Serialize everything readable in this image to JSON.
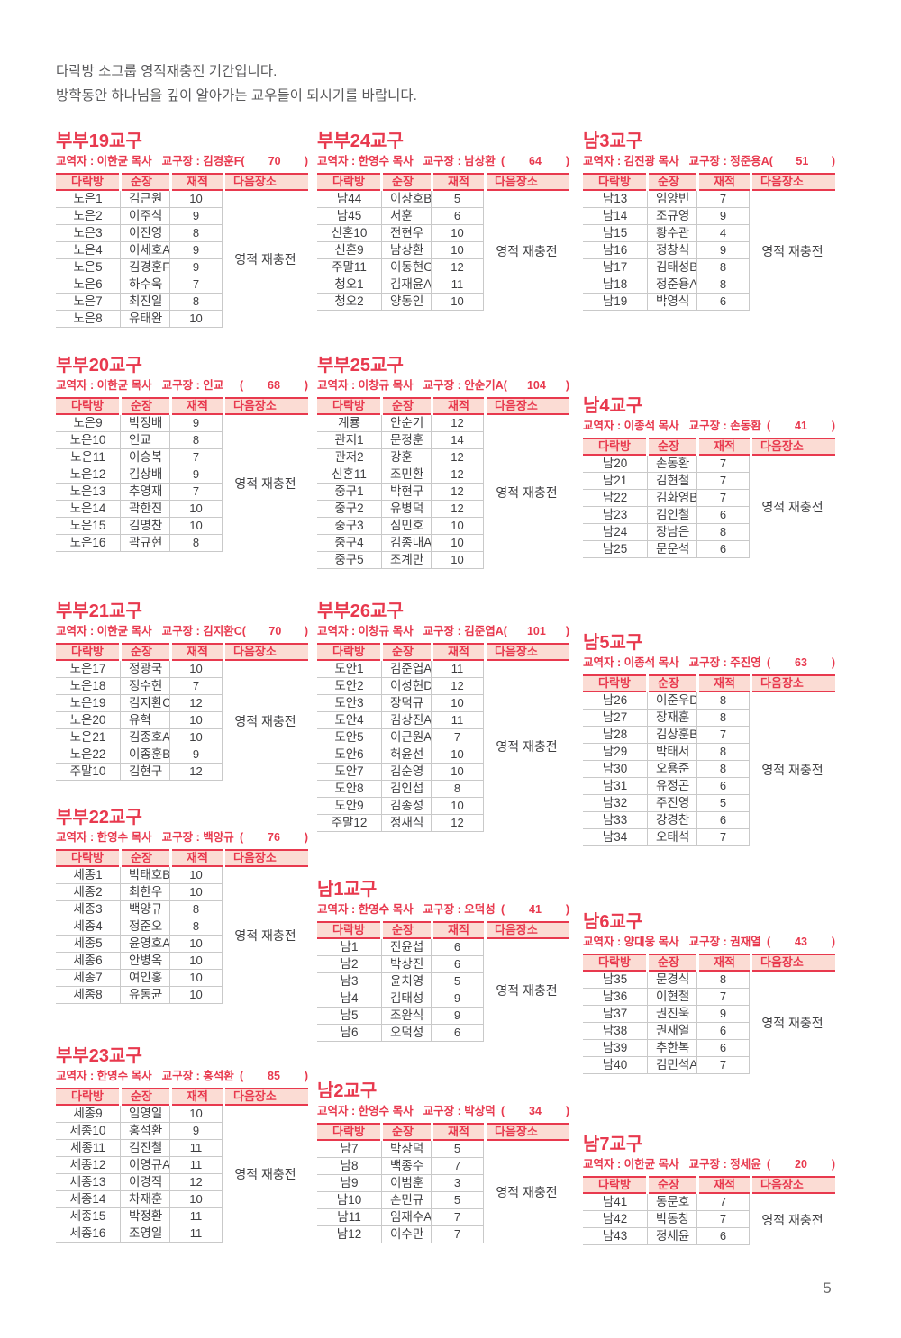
{
  "page": {
    "intro_lines": [
      "다락방 소그룹 영적재충전 기간입니다.",
      "방학동안 하나님을 깊이 알아가는 교우들이 되시기를 바랍니다."
    ],
    "page_number": "5"
  },
  "table_headers": [
    "다락방",
    "순장",
    "재적",
    "다음장소"
  ],
  "colors": {
    "accent_red": "#e8394e",
    "header_pink": "#fbdcd4",
    "text_dark": "#3e3e40",
    "line_gray": "#c9c9c9"
  },
  "columns": [
    [
      {
        "title": "부부19교구",
        "pastor": "교역자 : 이한균 목사",
        "leader": "교구장 : 김경훈F",
        "count": "70",
        "next_place": "영적 재충전",
        "rows": [
          [
            "노은1",
            "김근원",
            "10"
          ],
          [
            "노은2",
            "이주식",
            "9"
          ],
          [
            "노은3",
            "이진영",
            "8"
          ],
          [
            "노은4",
            "이세호A",
            "9"
          ],
          [
            "노은5",
            "김경훈F",
            "9"
          ],
          [
            "노은6",
            "하수욱",
            "7"
          ],
          [
            "노은7",
            "최진일",
            "8"
          ],
          [
            "노은8",
            "유태완",
            "10"
          ]
        ]
      },
      {
        "title": "부부20교구",
        "pastor": "교역자 : 이한균 목사",
        "leader": "교구장 : 인교",
        "count": "68",
        "next_place": "영적 재충전",
        "rows": [
          [
            "노은9",
            "박정배",
            "9"
          ],
          [
            "노은10",
            "인교",
            "8"
          ],
          [
            "노은11",
            "이승복",
            "7"
          ],
          [
            "노은12",
            "김상배",
            "9"
          ],
          [
            "노은13",
            "추영재",
            "7"
          ],
          [
            "노은14",
            "곽한진",
            "10"
          ],
          [
            "노은15",
            "김명찬",
            "10"
          ],
          [
            "노은16",
            "곽규현",
            "8"
          ]
        ]
      },
      {
        "title": "부부21교구",
        "pastor": "교역자 : 이한균 목사",
        "leader": "교구장 :  김지환C",
        "count": "70",
        "next_place": "영적 재충전",
        "rows": [
          [
            "노은17",
            "정광국",
            "10"
          ],
          [
            "노은18",
            "정수현",
            "7"
          ],
          [
            "노은19",
            "김지환C",
            "12"
          ],
          [
            "노은20",
            "유혁",
            "10"
          ],
          [
            "노은21",
            "김종호A",
            "10"
          ],
          [
            "노은22",
            "이종훈B",
            "9"
          ],
          [
            "주말10",
            "김현구",
            "12"
          ]
        ]
      },
      {
        "title": "부부22교구",
        "pastor": "교역자 : 한영수 목사",
        "leader": "교구장 : 백양규",
        "count": "76",
        "next_place": "영적 재충전",
        "rows": [
          [
            "세종1",
            "박태호B",
            "10"
          ],
          [
            "세종2",
            "최한우",
            "10"
          ],
          [
            "세종3",
            "백양규",
            "8"
          ],
          [
            "세종4",
            "정준오",
            "8"
          ],
          [
            "세종5",
            "윤영호A",
            "10"
          ],
          [
            "세종6",
            "안병옥",
            "10"
          ],
          [
            "세종7",
            "여인홍",
            "10"
          ],
          [
            "세종8",
            "유동균",
            "10"
          ]
        ]
      },
      {
        "title": "부부23교구",
        "pastor": "교역자 : 한영수 목사",
        "leader": "교구장 : 홍석환",
        "count": "85",
        "next_place": "영적 재충전",
        "rows": [
          [
            "세종9",
            "임영일",
            "10"
          ],
          [
            "세종10",
            "홍석환",
            "9"
          ],
          [
            "세종11",
            "김진철",
            "11"
          ],
          [
            "세종12",
            "이영규A",
            "11"
          ],
          [
            "세종13",
            "이경직",
            "12"
          ],
          [
            "세종14",
            "차재훈",
            "10"
          ],
          [
            "세종15",
            "박정환",
            "11"
          ],
          [
            "세종16",
            "조영일",
            "11"
          ]
        ]
      }
    ],
    [
      {
        "title": "부부24교구",
        "pastor": "교역자 : 한영수 목사",
        "leader": "교구장 : 남상환",
        "count": "64",
        "next_place": "영적 재충전",
        "rows": [
          [
            "남44",
            "이상호B",
            "5"
          ],
          [
            "남45",
            "서훈",
            "6"
          ],
          [
            "신혼10",
            "전현우",
            "10"
          ],
          [
            "신혼9",
            "남상환",
            "10"
          ],
          [
            "주말11",
            "이동현G",
            "12"
          ],
          [
            "청오1",
            "김재윤A",
            "11"
          ],
          [
            "청오2",
            "양동인",
            "10"
          ]
        ]
      },
      {
        "title": "부부25교구",
        "pastor": "교역자 : 이창규 목사",
        "leader": "교구장 : 안순기A",
        "count": "104",
        "next_place": "영적 재충전",
        "rows": [
          [
            "계룡",
            "안순기",
            "12"
          ],
          [
            "관저1",
            "문정훈",
            "14"
          ],
          [
            "관저2",
            "강훈",
            "12"
          ],
          [
            "신혼11",
            "조민환",
            "12"
          ],
          [
            "중구1",
            "박현구",
            "12"
          ],
          [
            "중구2",
            "유병덕",
            "12"
          ],
          [
            "중구3",
            "심민호",
            "10"
          ],
          [
            "중구4",
            "김종대A",
            "10"
          ],
          [
            "중구5",
            "조계만",
            "10"
          ]
        ]
      },
      {
        "title": "부부26교구",
        "pastor": "교역자 : 이창규 목사",
        "leader": "교구장 : 김준엽A",
        "count": "101",
        "next_place": "영적 재충전",
        "rows": [
          [
            "도안1",
            "김준엽A",
            "11"
          ],
          [
            "도안2",
            "이성현D",
            "12"
          ],
          [
            "도안3",
            "장덕규",
            "10"
          ],
          [
            "도안4",
            "김상진A",
            "11"
          ],
          [
            "도안5",
            "이근원A",
            "7"
          ],
          [
            "도안6",
            "허윤선",
            "10"
          ],
          [
            "도안7",
            "김순영",
            "10"
          ],
          [
            "도안8",
            "김인섭",
            "8"
          ],
          [
            "도안9",
            "김종성",
            "10"
          ],
          [
            "주말12",
            "정재식",
            "12"
          ]
        ]
      },
      {
        "title": "남1교구",
        "pastor": "교역자 : 한영수 목사",
        "leader": "교구장 : 오덕성",
        "count": "41",
        "next_place": "영적 재충전",
        "rows": [
          [
            "남1",
            "진윤섭",
            "6"
          ],
          [
            "남2",
            "박상진",
            "6"
          ],
          [
            "남3",
            "윤치영",
            "5"
          ],
          [
            "남4",
            "김태성",
            "9"
          ],
          [
            "남5",
            "조완식",
            "9"
          ],
          [
            "남6",
            "오덕성",
            "6"
          ]
        ]
      },
      {
        "title": "남2교구",
        "pastor": "교역자 : 한영수 목사",
        "leader": "교구장 : 박상덕",
        "count": "34",
        "next_place": "영적 재충전",
        "rows": [
          [
            "남7",
            "박상덕",
            "5"
          ],
          [
            "남8",
            "백종수",
            "7"
          ],
          [
            "남9",
            "이범훈",
            "3"
          ],
          [
            "남10",
            "손민규",
            "5"
          ],
          [
            "남11",
            "임재수A",
            "7"
          ],
          [
            "남12",
            "이수만",
            "7"
          ]
        ]
      }
    ],
    [
      {
        "title": "남3교구",
        "pastor": "교역자 : 김진광 목사",
        "leader": "교구장 : 정준용A",
        "count": "51",
        "next_place": "영적 재충전",
        "rows": [
          [
            "남13",
            "임양빈",
            "7"
          ],
          [
            "남14",
            "조규영",
            "9"
          ],
          [
            "남15",
            "황수관",
            "4"
          ],
          [
            "남16",
            "정창식",
            "9"
          ],
          [
            "남17",
            "김태성B",
            "8"
          ],
          [
            "남18",
            "정준용A",
            "8"
          ],
          [
            "남19",
            "박영식",
            "6"
          ]
        ]
      },
      {
        "title": "남4교구",
        "pastor": "교역자 : 이종석 목사",
        "leader": "교구장 : 손동환",
        "count": "41",
        "next_place": "영적 재충전",
        "rows": [
          [
            "남20",
            "손동환",
            "7"
          ],
          [
            "남21",
            "김현철",
            "7"
          ],
          [
            "남22",
            "김화영B",
            "7"
          ],
          [
            "남23",
            "김인철",
            "6"
          ],
          [
            "남24",
            "장남은",
            "8"
          ],
          [
            "남25",
            "문운석",
            "6"
          ]
        ]
      },
      {
        "title": "남5교구",
        "pastor": "교역자 : 이종석 목사",
        "leader": "교구장 : 주진영",
        "count": "63",
        "next_place": "영적 재충전",
        "rows": [
          [
            "남26",
            "이준우D",
            "8"
          ],
          [
            "남27",
            "장재훈",
            "8"
          ],
          [
            "남28",
            "김상훈B",
            "7"
          ],
          [
            "남29",
            "박태서",
            "8"
          ],
          [
            "남30",
            "오용준",
            "8"
          ],
          [
            "남31",
            "유정곤",
            "6"
          ],
          [
            "남32",
            "주진영",
            "5"
          ],
          [
            "남33",
            "강경찬",
            "6"
          ],
          [
            "남34",
            "오태석",
            "7"
          ]
        ]
      },
      {
        "title": "남6교구",
        "pastor": "교역자 : 양대웅 목사",
        "leader": "교구장 : 권재열",
        "count": "43",
        "next_place": "영적 재충전",
        "rows": [
          [
            "남35",
            "문경식",
            "8"
          ],
          [
            "남36",
            "이현철",
            "7"
          ],
          [
            "남37",
            "권진욱",
            "9"
          ],
          [
            "남38",
            "권재열",
            "6"
          ],
          [
            "남39",
            "추한복",
            "6"
          ],
          [
            "남40",
            "김민석A",
            "7"
          ]
        ]
      },
      {
        "title": "남7교구",
        "pastor": "교역자 : 이한균 목사",
        "leader": "교구장 : 정세윤",
        "count": "20",
        "next_place": "영적 재충전",
        "rows": [
          [
            "남41",
            "동문호",
            "7"
          ],
          [
            "남42",
            "박동창",
            "7"
          ],
          [
            "남43",
            "정세윤",
            "6"
          ]
        ]
      }
    ]
  ]
}
